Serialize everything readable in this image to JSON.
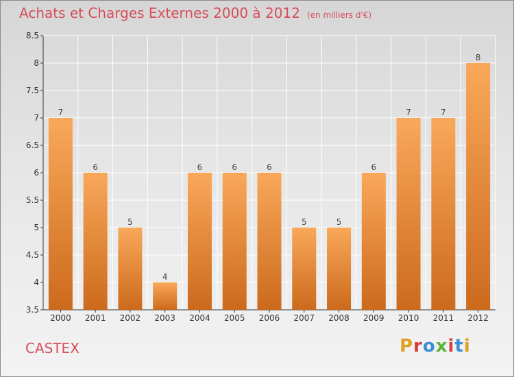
{
  "header": {
    "title": "Achats et Charges Externes 2000 à 2012",
    "subtitle": "(en milliers d'€)"
  },
  "footer": {
    "commune": "CASTEX",
    "logo_text": "Proxiti",
    "logo_colors": [
      "#e0a020",
      "#d63f3f",
      "#3a8fd8",
      "#5bb53a",
      "#d63f3f",
      "#3a8fd8",
      "#e0a020"
    ]
  },
  "colors": {
    "bar_top": "#f9a85a",
    "bar_bottom": "#cc6a1c",
    "accent_text": "#d64e5a"
  },
  "chart_data": {
    "type": "bar",
    "categories": [
      "2000",
      "2001",
      "2002",
      "2003",
      "2004",
      "2005",
      "2006",
      "2007",
      "2008",
      "2009",
      "2010",
      "2011",
      "2012"
    ],
    "values": [
      7,
      6,
      5,
      4,
      6,
      6,
      6,
      5,
      5,
      6,
      7,
      7,
      8
    ],
    "ylim": [
      3.5,
      8.5
    ],
    "yticks": [
      "3.5",
      "4",
      "4.5",
      "5",
      "5.5",
      "6",
      "6.5",
      "7",
      "7.5",
      "8",
      "8.5"
    ],
    "grid": true
  }
}
